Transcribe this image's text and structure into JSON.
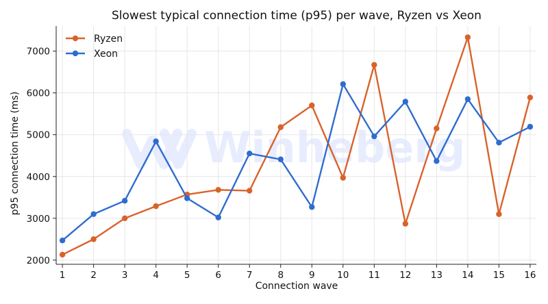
{
  "chart_data": {
    "type": "line",
    "title": "Slowest typical connection time (p95) per wave, Ryzen vs Xeon",
    "xlabel": "Connection wave",
    "ylabel": "p95 connection time (ms)",
    "x": [
      1,
      2,
      3,
      4,
      5,
      6,
      7,
      8,
      9,
      10,
      11,
      12,
      13,
      14,
      15,
      16
    ],
    "xlim": [
      0.8,
      16.2
    ],
    "ylim": [
      1900,
      7600
    ],
    "yticks": [
      2000,
      3000,
      4000,
      5000,
      6000,
      7000
    ],
    "grid": true,
    "legend_position": "top-left",
    "series": [
      {
        "name": "Ryzen",
        "color": "#d9622b",
        "values": [
          2130,
          2500,
          3000,
          3290,
          3570,
          3680,
          3660,
          5180,
          5700,
          3970,
          6670,
          2870,
          5150,
          7330,
          3100,
          5890
        ]
      },
      {
        "name": "Xeon",
        "color": "#2f6ccf",
        "values": [
          2470,
          3100,
          3420,
          4840,
          3480,
          3020,
          4550,
          4410,
          3270,
          6210,
          4960,
          5790,
          4370,
          5850,
          4810,
          5190
        ]
      }
    ]
  },
  "watermark": {
    "text": "Winheberg",
    "icon": "w-logo-icon"
  }
}
